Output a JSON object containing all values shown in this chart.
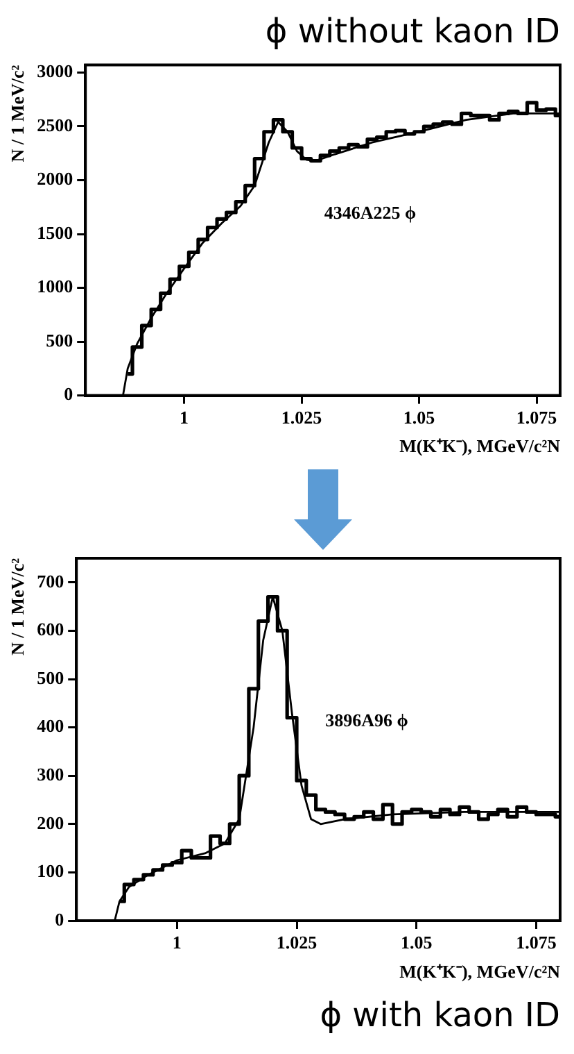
{
  "chart_data": [
    {
      "type": "step",
      "title": "ϕ without kaon ID",
      "xlabel": "M(K⁺K⁻), MGeV/c²N",
      "ylabel": "N / 1 MeV/c²",
      "annotations": [
        "4346A225 ϕ"
      ],
      "xlim": [
        0.979,
        1.08
      ],
      "ylim": [
        0,
        3070
      ],
      "xticks": [
        1,
        1.025,
        1.05,
        1.075
      ],
      "yticks": [
        0,
        500,
        1000,
        1500,
        2000,
        2500,
        3000
      ],
      "series": [
        {
          "type": "step",
          "color": "#000000",
          "x": [
            0.988,
            0.99,
            0.992,
            0.994,
            0.996,
            0.998,
            1.0,
            1.002,
            1.004,
            1.006,
            1.008,
            1.01,
            1.012,
            1.014,
            1.016,
            1.018,
            1.02,
            1.022,
            1.024,
            1.026,
            1.028,
            1.03,
            1.032,
            1.034,
            1.036,
            1.038,
            1.04,
            1.042,
            1.044,
            1.046,
            1.048,
            1.05,
            1.052,
            1.054,
            1.056,
            1.058,
            1.06,
            1.062,
            1.064,
            1.066,
            1.068,
            1.07,
            1.072,
            1.074,
            1.076,
            1.078,
            1.08
          ],
          "values": [
            200,
            450,
            650,
            800,
            950,
            1080,
            1200,
            1330,
            1450,
            1560,
            1640,
            1700,
            1800,
            1950,
            2200,
            2450,
            2560,
            2450,
            2300,
            2200,
            2180,
            2230,
            2270,
            2300,
            2330,
            2310,
            2380,
            2400,
            2450,
            2460,
            2430,
            2450,
            2500,
            2520,
            2540,
            2520,
            2620,
            2600,
            2600,
            2560,
            2620,
            2640,
            2620,
            2720,
            2650,
            2660,
            2600
          ]
        },
        {
          "type": "line",
          "color": "#000000",
          "x": [
            0.987,
            0.988,
            0.99,
            0.993,
            0.996,
            1.0,
            1.004,
            1.008,
            1.012,
            1.015,
            1.018,
            1.02,
            1.022,
            1.024,
            1.026,
            1.028,
            1.032,
            1.04,
            1.05,
            1.06,
            1.07,
            1.08
          ],
          "values": [
            0,
            250,
            480,
            720,
            930,
            1180,
            1420,
            1600,
            1760,
            1950,
            2350,
            2540,
            2450,
            2270,
            2190,
            2180,
            2240,
            2350,
            2450,
            2560,
            2620,
            2620
          ]
        }
      ]
    },
    {
      "type": "step",
      "title": "ϕ with kaon ID",
      "xlabel": "M(K⁺K⁻), MGeV/c²N",
      "ylabel": "N / 1 MeV/c²",
      "annotations": [
        "3896A96 ϕ"
      ],
      "xlim": [
        0.979,
        1.08
      ],
      "ylim": [
        0,
        750
      ],
      "xticks": [
        1,
        1.025,
        1.05,
        1.075
      ],
      "yticks": [
        0,
        100,
        200,
        300,
        400,
        500,
        600,
        700
      ],
      "series": [
        {
          "type": "step",
          "color": "#000000",
          "x": [
            0.988,
            0.99,
            0.992,
            0.994,
            0.996,
            0.998,
            1.0,
            1.002,
            1.004,
            1.006,
            1.008,
            1.01,
            1.012,
            1.014,
            1.016,
            1.018,
            1.02,
            1.022,
            1.024,
            1.026,
            1.028,
            1.03,
            1.032,
            1.034,
            1.036,
            1.038,
            1.04,
            1.042,
            1.044,
            1.046,
            1.048,
            1.05,
            1.052,
            1.054,
            1.056,
            1.058,
            1.06,
            1.062,
            1.064,
            1.066,
            1.068,
            1.07,
            1.072,
            1.074,
            1.076,
            1.078,
            1.08
          ],
          "values": [
            40,
            75,
            85,
            95,
            105,
            115,
            120,
            145,
            130,
            130,
            175,
            160,
            200,
            300,
            480,
            620,
            670,
            600,
            420,
            290,
            260,
            230,
            225,
            220,
            210,
            215,
            225,
            210,
            240,
            200,
            225,
            230,
            225,
            215,
            230,
            220,
            235,
            225,
            210,
            220,
            230,
            215,
            235,
            225,
            220,
            220,
            215
          ]
        },
        {
          "type": "line",
          "color": "#000000",
          "x": [
            0.987,
            0.988,
            0.99,
            0.994,
            1.0,
            1.006,
            1.01,
            1.013,
            1.016,
            1.018,
            1.02,
            1.022,
            1.024,
            1.026,
            1.028,
            1.03,
            1.035,
            1.045,
            1.06,
            1.08
          ],
          "values": [
            0,
            40,
            70,
            95,
            125,
            140,
            160,
            210,
            400,
            580,
            670,
            600,
            430,
            280,
            210,
            200,
            210,
            220,
            225,
            225
          ]
        }
      ]
    }
  ]
}
